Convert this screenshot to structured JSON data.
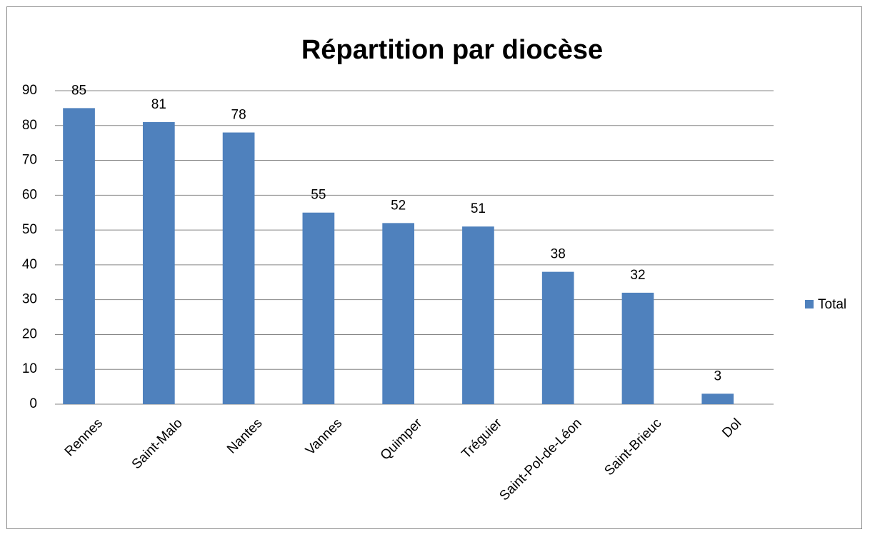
{
  "chart_data": {
    "type": "bar",
    "title": "Répartition par diocèse",
    "categories": [
      "Rennes",
      "Saint-Malo",
      "Nantes",
      "Vannes",
      "Quimper",
      "Tréguier",
      "Saint-Pol-de-Léon",
      "Saint-Brieuc",
      "Dol"
    ],
    "series": [
      {
        "name": "Total",
        "color": "#4f81bd",
        "values": [
          85,
          81,
          78,
          55,
          52,
          51,
          38,
          32,
          3
        ]
      }
    ],
    "ylim": [
      0,
      90
    ],
    "yticks": [
      0,
      10,
      20,
      30,
      40,
      50,
      60,
      70,
      80,
      90
    ],
    "grid": true,
    "legend": "right"
  }
}
